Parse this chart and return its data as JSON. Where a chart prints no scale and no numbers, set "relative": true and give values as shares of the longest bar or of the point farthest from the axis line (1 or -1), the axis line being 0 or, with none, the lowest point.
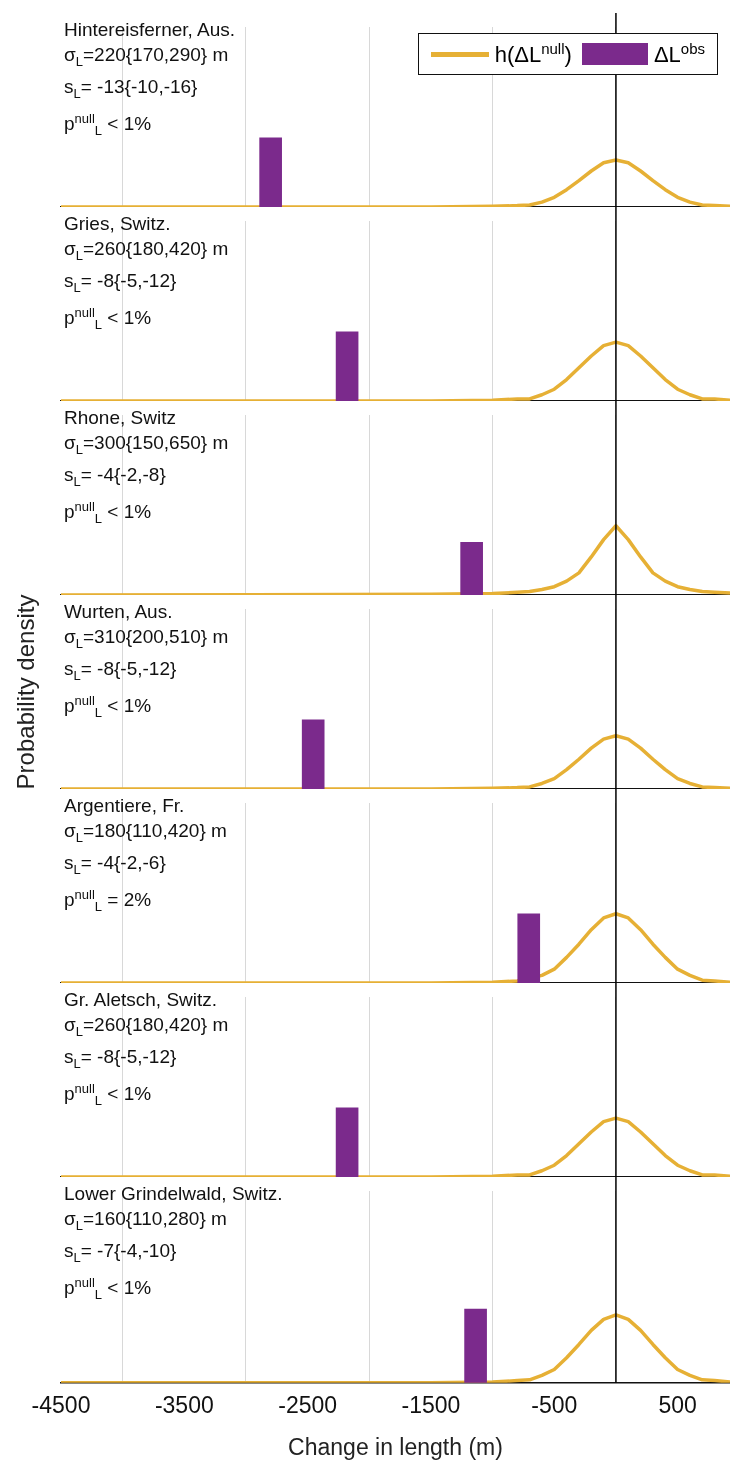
{
  "chart_data": [
    {
      "type": "line",
      "title": "Hintereisferner, Aus.",
      "annotations": [
        "σ$_{L}$=220{170,290} m",
        "s$_{L}$= -13{-10,-16}",
        "p$^{null}$$_{L}$ < 1%"
      ],
      "relative": true,
      "xlim": [
        -4500,
        925
      ],
      "xticks": [
        -4500,
        -3500,
        -2500,
        -1500,
        -500,
        500
      ],
      "grid": "x",
      "tick_labels": false,
      "legend": "top right",
      "ref_lines": [
        {
          "axis": "x",
          "value": 0,
          "color": "#000000"
        }
      ],
      "series": [
        {
          "name": "h(ΔL$^{null}$)",
          "color": "#e6b035",
          "x": [
            -4500,
            -1500,
            -1000,
            -800,
            -700,
            -600,
            -500,
            -400,
            -300,
            -200,
            -100,
            0,
            100,
            200,
            300,
            400,
            500,
            600,
            700,
            800,
            925
          ],
          "values": [
            0,
            0,
            0.01,
            0.02,
            0.03,
            0.07,
            0.14,
            0.25,
            0.38,
            0.52,
            0.64,
            0.68,
            0.64,
            0.52,
            0.38,
            0.25,
            0.14,
            0.07,
            0.03,
            0.02,
            0.01
          ]
        },
        {
          "type": "bar",
          "name": "ΔL$^{obs}$",
          "color": "#7b2a8c",
          "x": [
            -2800
          ],
          "values": [
            1
          ]
        }
      ]
    },
    {
      "type": "line",
      "title": "Gries, Switz.",
      "annotations": [
        "σ$_{L}$=260{180,420} m",
        "s$_{L}$= -8{-5,-12}",
        "p$^{null}$$_{L}$ < 1%"
      ],
      "relative": true,
      "xlim": [
        -4500,
        925
      ],
      "xticks": [
        -4500,
        -3500,
        -2500,
        -1500,
        -500,
        500
      ],
      "grid": "x",
      "tick_labels": false,
      "ref_lines": [
        {
          "axis": "x",
          "value": 0,
          "color": "#000000"
        }
      ],
      "series": [
        {
          "type": "line",
          "color": "#e6b035",
          "x": [
            -4500,
            -1500,
            -1000,
            -800,
            -700,
            -600,
            -500,
            -400,
            -300,
            -200,
            -100,
            0,
            100,
            200,
            300,
            400,
            500,
            600,
            700,
            800,
            925
          ],
          "values": [
            0,
            0,
            0.01,
            0.03,
            0.03,
            0.09,
            0.17,
            0.31,
            0.48,
            0.65,
            0.8,
            0.85,
            0.8,
            0.65,
            0.48,
            0.31,
            0.17,
            0.09,
            0.03,
            0.03,
            0.01
          ]
        },
        {
          "type": "bar",
          "color": "#7b2a8c",
          "x": [
            -2180
          ],
          "values": [
            1
          ]
        }
      ]
    },
    {
      "type": "line",
      "title": "Rhone, Switz",
      "annotations": [
        "σ$_{L}$=300{150,650} m",
        "s$_{L}$= -4{-2,-8}",
        "p$^{null}$$_{L}$ < 1%"
      ],
      "relative": true,
      "xlim": [
        -4500,
        925
      ],
      "xticks": [
        -4500,
        -3500,
        -2500,
        -1500,
        -500,
        500
      ],
      "grid": "x",
      "tick_labels": false,
      "ref_lines": [
        {
          "axis": "x",
          "value": 0,
          "color": "#000000"
        }
      ],
      "series": [
        {
          "type": "line",
          "color": "#e6b035",
          "x": [
            -4500,
            -1500,
            -1000,
            -800,
            -700,
            -600,
            -500,
            -400,
            -300,
            -200,
            -100,
            0,
            100,
            200,
            300,
            400,
            500,
            600,
            700,
            800,
            925
          ],
          "values": [
            0,
            0.01,
            0.02,
            0.04,
            0.05,
            0.08,
            0.12,
            0.2,
            0.32,
            0.55,
            0.8,
            1,
            0.8,
            0.55,
            0.32,
            0.2,
            0.12,
            0.08,
            0.05,
            0.04,
            0.03
          ]
        },
        {
          "type": "bar",
          "color": "#7b2a8c",
          "x": [
            -1170
          ],
          "values": [
            0.76
          ]
        }
      ]
    },
    {
      "type": "line",
      "title": "Wurten, Aus.",
      "ylabel": "Probability density",
      "annotations": [
        "σ$_{L}$=310{200,510} m",
        "s$_{L}$= -8{-5,-12}",
        "p$^{null}$$_{L}$ < 1%"
      ],
      "relative": true,
      "xlim": [
        -4500,
        925
      ],
      "xticks": [
        -4500,
        -3500,
        -2500,
        -1500,
        -500,
        500
      ],
      "grid": "x",
      "tick_labels": false,
      "ref_lines": [
        {
          "axis": "x",
          "value": 0,
          "color": "#000000"
        }
      ],
      "series": [
        {
          "type": "line",
          "color": "#e6b035",
          "x": [
            -4500,
            -1500,
            -1000,
            -800,
            -700,
            -600,
            -500,
            -400,
            -300,
            -200,
            -100,
            0,
            100,
            200,
            300,
            400,
            500,
            600,
            700,
            800,
            925
          ],
          "values": [
            0,
            0,
            0.01,
            0.02,
            0.03,
            0.08,
            0.15,
            0.28,
            0.43,
            0.59,
            0.72,
            0.77,
            0.72,
            0.59,
            0.43,
            0.28,
            0.15,
            0.08,
            0.03,
            0.02,
            0.01
          ]
        },
        {
          "type": "bar",
          "color": "#7b2a8c",
          "x": [
            -2455
          ],
          "values": [
            1
          ]
        }
      ]
    },
    {
      "type": "line",
      "title": "Argentiere, Fr.",
      "annotations": [
        "σ$_{L}$=180{110,420} m",
        "s$_{L}$= -4{-2,-6}",
        "p$^{null}$$_{L}$ = 2%"
      ],
      "relative": true,
      "xlim": [
        -4500,
        925
      ],
      "xticks": [
        -4500,
        -3500,
        -2500,
        -1500,
        -500,
        500
      ],
      "grid": "x",
      "tick_labels": false,
      "ref_lines": [
        {
          "axis": "x",
          "value": 0,
          "color": "#000000"
        }
      ],
      "series": [
        {
          "type": "line",
          "color": "#e6b035",
          "x": [
            -4500,
            -1500,
            -1000,
            -800,
            -700,
            -600,
            -500,
            -400,
            -300,
            -200,
            -100,
            0,
            100,
            200,
            300,
            400,
            500,
            600,
            700,
            800,
            925
          ],
          "values": [
            0,
            0,
            0.01,
            0.03,
            null,
            0.11,
            0.2,
            0.37,
            0.56,
            0.77,
            0.94,
            1,
            0.94,
            0.77,
            0.56,
            0.37,
            0.2,
            0.11,
            0.04,
            0.03,
            0.01
          ]
        },
        {
          "type": "bar",
          "color": "#7b2a8c",
          "x": [
            -707
          ],
          "values": [
            1
          ]
        }
      ]
    },
    {
      "type": "line",
      "title": "Gr. Aletsch, Switz.",
      "annotations": [
        "σ$_{L}$=260{180,420} m",
        "s$_{L}$= -8{-5,-12}",
        "p$^{null}$$_{L}$ < 1%"
      ],
      "relative": true,
      "xlim": [
        -4500,
        925
      ],
      "xticks": [
        -4500,
        -3500,
        -2500,
        -1500,
        -500,
        500
      ],
      "grid": "x",
      "tick_labels": false,
      "ref_lines": [
        {
          "axis": "x",
          "value": 0,
          "color": "#000000"
        }
      ],
      "series": [
        {
          "type": "line",
          "color": "#e6b035",
          "x": [
            -4500,
            -1500,
            -1000,
            -800,
            -700,
            -600,
            -500,
            -400,
            -300,
            -200,
            -100,
            0,
            100,
            200,
            300,
            400,
            500,
            600,
            700,
            800,
            925
          ],
          "values": [
            0,
            0,
            0.01,
            0.03,
            0.03,
            0.09,
            0.17,
            0.31,
            0.48,
            0.65,
            0.8,
            0.85,
            0.8,
            0.65,
            0.48,
            0.31,
            0.17,
            0.09,
            0.03,
            0.03,
            0.01
          ]
        },
        {
          "type": "bar",
          "color": "#7b2a8c",
          "x": [
            -2180
          ],
          "values": [
            1
          ]
        }
      ]
    },
    {
      "type": "line",
      "title": "Lower Grindelwald, Switz.",
      "xlabel": "Change in length (m)",
      "annotations": [
        "σ$_{L}$=160{110,280} m",
        "s$_{L}$= -7{-4,-10}",
        "p$^{null}$$_{L}$ < 1%"
      ],
      "relative": true,
      "xlim": [
        -4500,
        925
      ],
      "xticks": [
        -4500,
        -3500,
        -2500,
        -1500,
        -500,
        500
      ],
      "grid": "x",
      "tick_labels": "x",
      "ref_lines": [
        {
          "axis": "x",
          "value": 0,
          "color": "#000000"
        }
      ],
      "series": [
        {
          "type": "line",
          "color": "#e6b035",
          "x": [
            -4500,
            -1500,
            -1000,
            -800,
            -700,
            -600,
            -500,
            -400,
            -300,
            -200,
            -100,
            0,
            100,
            200,
            300,
            400,
            500,
            600,
            700,
            800,
            925
          ],
          "values": [
            0,
            0,
            0.01,
            0.03,
            0.04,
            0.1,
            0.18,
            0.34,
            0.52,
            0.71,
            0.86,
            0.92,
            0.86,
            0.71,
            0.52,
            0.34,
            0.18,
            0.1,
            0.04,
            0.03,
            0.01
          ]
        },
        {
          "type": "bar",
          "color": "#7b2a8c",
          "x": [
            -1138
          ],
          "values": [
            1
          ]
        }
      ]
    }
  ]
}
